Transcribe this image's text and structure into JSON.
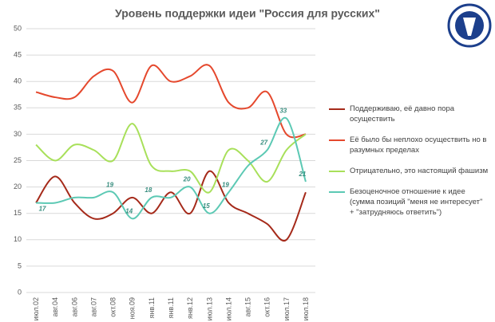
{
  "chart_data": {
    "type": "line",
    "title": "Уровень поддержки идеи \"Россия для русских\"",
    "categories": [
      "июл.02",
      "авг.04",
      "авг.06",
      "авг.07",
      "окт.08",
      "ноя.09",
      "янв.11",
      "янв.11",
      "янв.12",
      "июл.13",
      "июл.14",
      "авг.15",
      "окт.16",
      "июл.17",
      "июл.18"
    ],
    "series": [
      {
        "name": "Поддерживаю, её давно пора осуществить",
        "color": "#a52a1a",
        "values": [
          17,
          22,
          17,
          14,
          15,
          18,
          15,
          19,
          15,
          23,
          17,
          15,
          13,
          10,
          19
        ]
      },
      {
        "name": "Её было бы неплохо осуществить но в разумных пределах",
        "color": "#e5482d",
        "values": [
          38,
          37,
          37,
          41,
          42,
          36,
          43,
          40,
          41,
          43,
          36,
          35,
          38,
          30,
          30
        ]
      },
      {
        "name": "Отрицательно, это настоящий фашизм",
        "color": "#a8e05a",
        "values": [
          28,
          25,
          28,
          27,
          25,
          32,
          24,
          23,
          23,
          19,
          27,
          25,
          21,
          27,
          30
        ]
      },
      {
        "name": "Безоценочное отношение к идее (сумма позиций \"меня не интересует\" + \"затрудняюсь ответить\")",
        "color": "#5cc9b4",
        "values": [
          17,
          17,
          18,
          18,
          19,
          14,
          18,
          18,
          20,
          15,
          19,
          24,
          27,
          33,
          21
        ],
        "value_labels": [
          "17",
          null,
          null,
          null,
          "19",
          "14",
          "18",
          null,
          "20",
          "15",
          "19",
          null,
          "27",
          "33",
          "21"
        ]
      }
    ],
    "ylim": [
      0,
      50
    ],
    "yticks": [
      0,
      5,
      10,
      15,
      20,
      25,
      30,
      35,
      40,
      45,
      50
    ],
    "grid": true,
    "legend": "right"
  }
}
